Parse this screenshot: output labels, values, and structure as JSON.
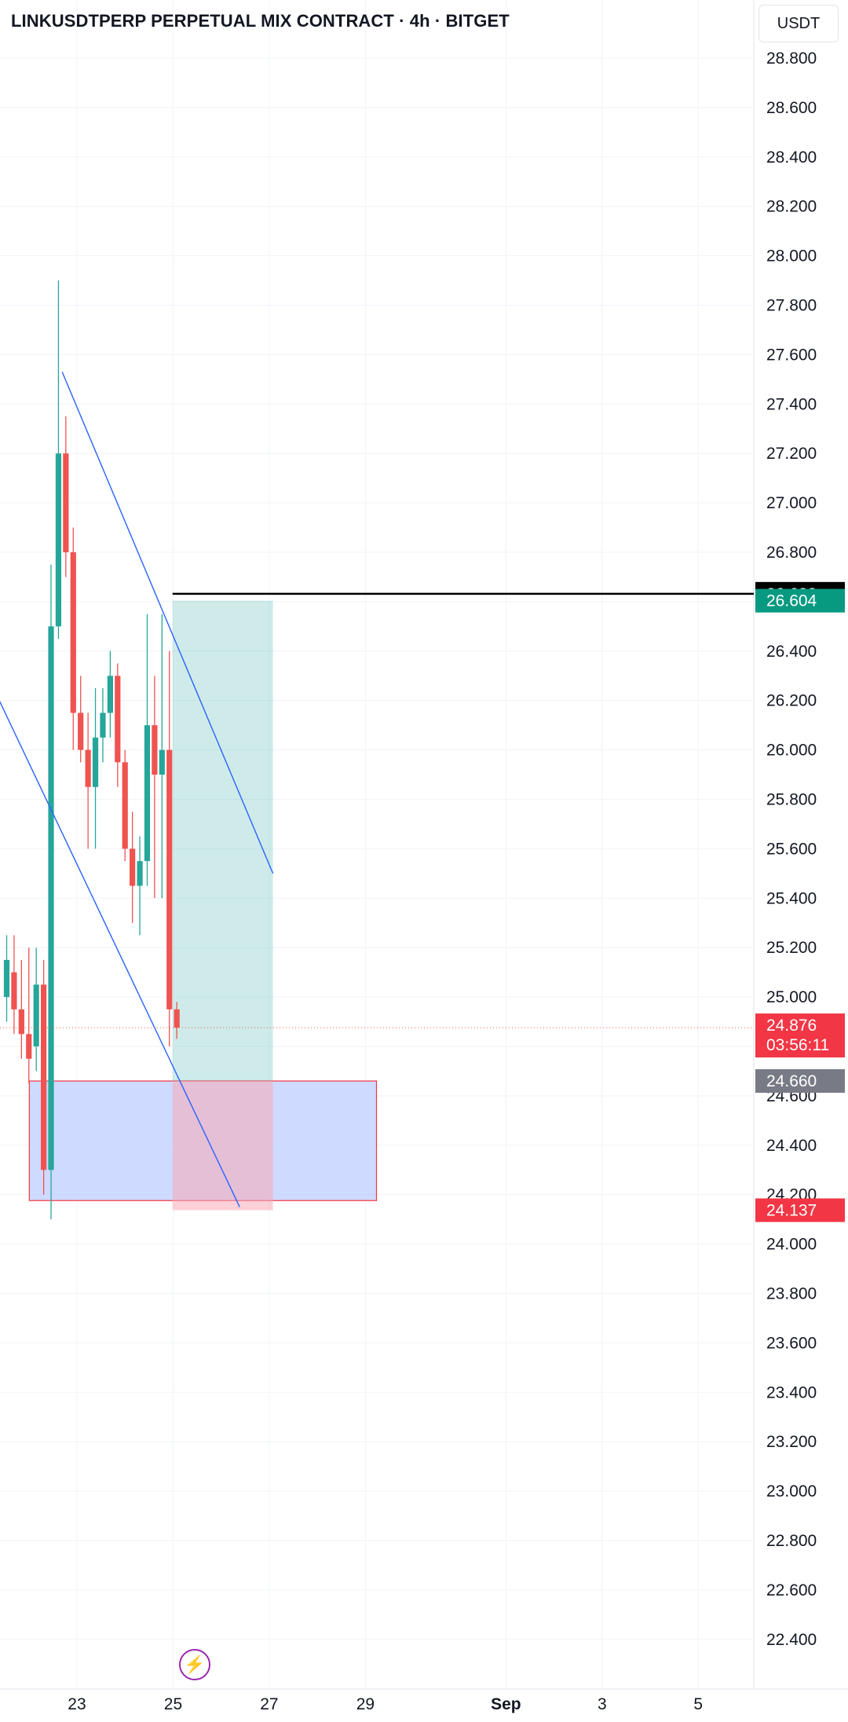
{
  "header": {
    "title": "LINKUSDTPERP PERPETUAL MIX CONTRACT · 4h · BITGET",
    "currency": "USDT"
  },
  "colors": {
    "up": "#26a69a",
    "down": "#ef5350",
    "trendline": "#2962ff",
    "target_zone": "#26a69a",
    "stop_zone": "#f7a9b5",
    "demand_box_fill": "#c5d3ff",
    "demand_box_border": "#f23645",
    "resistance_line": "#000000"
  },
  "icons": {
    "bolt": "lightning-bolt-icon"
  },
  "chart_data": {
    "type": "candlestick",
    "title": "LINKUSDTPERP PERPETUAL MIX CONTRACT · 4h · BITGET",
    "y_axis": {
      "ticks": [
        "28.800",
        "28.600",
        "28.400",
        "28.200",
        "28.000",
        "27.800",
        "27.600",
        "27.400",
        "27.200",
        "27.000",
        "26.800",
        "26.600",
        "26.400",
        "26.200",
        "26.000",
        "25.800",
        "25.600",
        "25.400",
        "25.200",
        "25.000",
        "24.800",
        "24.600",
        "24.400",
        "24.200",
        "24.000",
        "23.800",
        "23.600",
        "23.400",
        "23.200",
        "23.000",
        "22.800",
        "22.600",
        "22.400"
      ],
      "range": [
        22.2,
        29.0
      ]
    },
    "x_axis": {
      "ticks": [
        {
          "label": "23",
          "bar": 9.5,
          "bold": false
        },
        {
          "label": "25",
          "bar": 22.5,
          "bold": false
        },
        {
          "label": "27",
          "bar": 35.5,
          "bold": false
        },
        {
          "label": "29",
          "bar": 48.5,
          "bold": false
        },
        {
          "label": "Sep",
          "bar": 67.5,
          "bold": true
        },
        {
          "label": "3",
          "bar": 80.5,
          "bold": false
        },
        {
          "label": "5",
          "bar": 93.5,
          "bold": false
        }
      ]
    },
    "candles": [
      {
        "bar": 0,
        "o": 25.0,
        "h": 25.25,
        "l": 24.9,
        "c": 25.15
      },
      {
        "bar": 1,
        "o": 25.1,
        "h": 25.25,
        "l": 24.85,
        "c": 24.95
      },
      {
        "bar": 2,
        "o": 24.95,
        "h": 25.15,
        "l": 24.75,
        "c": 24.85
      },
      {
        "bar": 3,
        "o": 24.85,
        "h": 25.2,
        "l": 24.65,
        "c": 24.75
      },
      {
        "bar": 4,
        "o": 24.8,
        "h": 25.2,
        "l": 24.7,
        "c": 25.05
      },
      {
        "bar": 5,
        "o": 25.05,
        "h": 25.15,
        "l": 24.2,
        "c": 24.3
      },
      {
        "bar": 6,
        "o": 24.3,
        "h": 26.75,
        "l": 24.1,
        "c": 26.5
      },
      {
        "bar": 7,
        "o": 26.5,
        "h": 27.9,
        "l": 26.45,
        "c": 27.2
      },
      {
        "bar": 8,
        "o": 27.2,
        "h": 27.35,
        "l": 26.7,
        "c": 26.8
      },
      {
        "bar": 9,
        "o": 26.8,
        "h": 26.9,
        "l": 26.0,
        "c": 26.15
      },
      {
        "bar": 10,
        "o": 26.15,
        "h": 26.3,
        "l": 25.95,
        "c": 26.0
      },
      {
        "bar": 11,
        "o": 26.0,
        "h": 26.15,
        "l": 25.6,
        "c": 25.85
      },
      {
        "bar": 12,
        "o": 25.85,
        "h": 26.25,
        "l": 25.6,
        "c": 26.05
      },
      {
        "bar": 13,
        "o": 26.05,
        "h": 26.25,
        "l": 25.95,
        "c": 26.15
      },
      {
        "bar": 14,
        "o": 26.15,
        "h": 26.4,
        "l": 26.05,
        "c": 26.3
      },
      {
        "bar": 15,
        "o": 26.3,
        "h": 26.35,
        "l": 25.85,
        "c": 25.95
      },
      {
        "bar": 16,
        "o": 25.95,
        "h": 26.0,
        "l": 25.55,
        "c": 25.6
      },
      {
        "bar": 17,
        "o": 25.6,
        "h": 25.75,
        "l": 25.3,
        "c": 25.45
      },
      {
        "bar": 18,
        "o": 25.45,
        "h": 25.65,
        "l": 25.25,
        "c": 25.55
      },
      {
        "bar": 19,
        "o": 25.55,
        "h": 26.55,
        "l": 25.45,
        "c": 26.1
      },
      {
        "bar": 20,
        "o": 26.1,
        "h": 26.3,
        "l": 25.4,
        "c": 25.9
      },
      {
        "bar": 21,
        "o": 25.9,
        "h": 26.55,
        "l": 25.4,
        "c": 26.0
      },
      {
        "bar": 22,
        "o": 26.0,
        "h": 26.4,
        "l": 24.8,
        "c": 24.95
      },
      {
        "bar": 23,
        "o": 24.95,
        "h": 24.98,
        "l": 24.83,
        "c": 24.876
      }
    ],
    "trendlines": [
      {
        "name": "upper-trendline",
        "from": {
          "bar": 7.5,
          "price": 27.53
        },
        "to": {
          "bar": 36.0,
          "price": 25.5
        }
      },
      {
        "name": "lower-trendline",
        "from": {
          "bar": -1.0,
          "price": 26.2
        },
        "to": {
          "bar": 31.5,
          "price": 24.15
        }
      }
    ],
    "horizontal_line": {
      "price": 26.632
    },
    "position": {
      "from_bar": 22.0,
      "to_bar": 36.0,
      "entry": 24.66,
      "target": 26.604,
      "stop": 24.137
    },
    "demand_box": {
      "from_bar": 2.0,
      "to_bar": 50.0,
      "top": 24.66,
      "bottom": 24.176
    },
    "current_price_line": {
      "price": 24.876
    },
    "price_tags": [
      {
        "name": "resistance-price-tag",
        "price": 26.632,
        "label": "26.632",
        "bg": "#000000"
      },
      {
        "name": "target-price-tag",
        "price": 26.604,
        "label": "26.604",
        "bg": "#089981"
      },
      {
        "name": "current-price-tag",
        "price": 24.876,
        "label": "24.876",
        "sub": "03:56:11",
        "bg": "#f23645"
      },
      {
        "name": "entry-price-tag",
        "price": 24.66,
        "label": "24.660",
        "bg": "#787b86"
      },
      {
        "name": "stop-price-tag",
        "price": 24.137,
        "label": "24.137",
        "bg": "#f23645"
      }
    ]
  }
}
